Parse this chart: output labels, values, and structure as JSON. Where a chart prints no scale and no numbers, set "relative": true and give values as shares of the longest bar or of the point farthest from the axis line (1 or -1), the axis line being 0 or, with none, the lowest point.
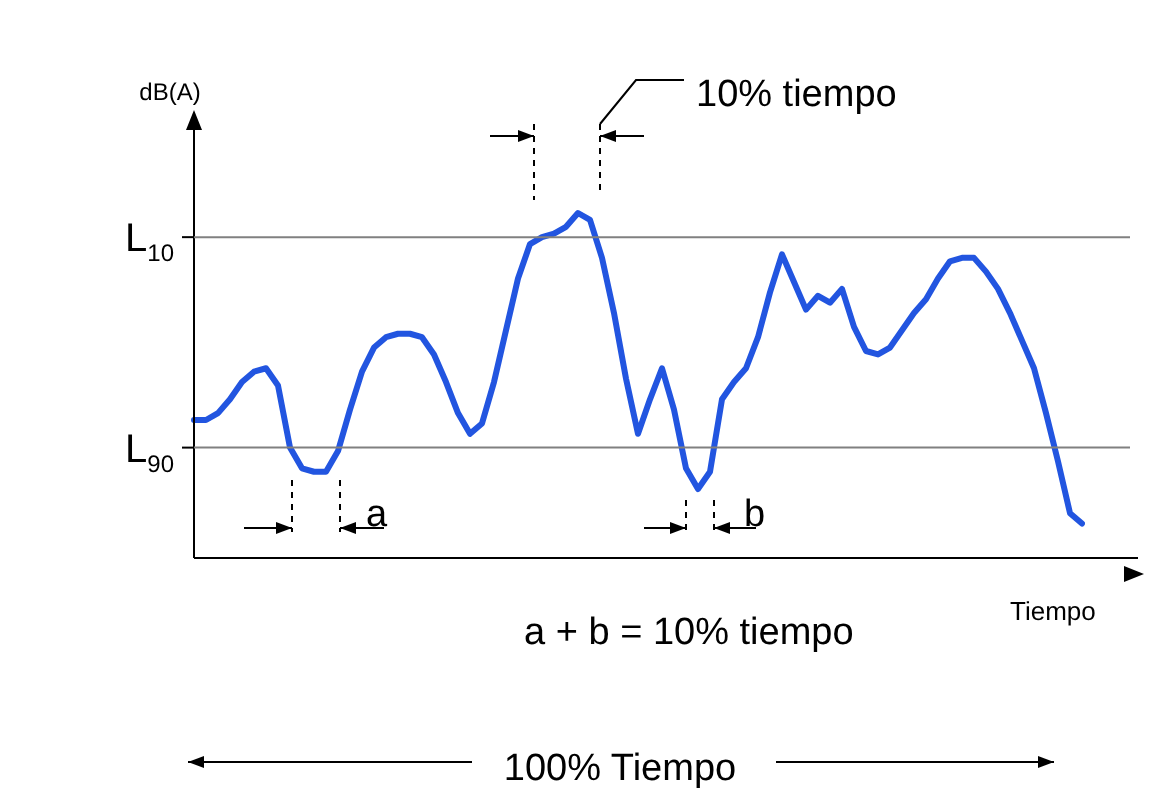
{
  "chart_data": {
    "type": "line",
    "relative": true,
    "ylabel": "dB(A)",
    "xlabel": "Tiempo",
    "categories": [
      null,
      null,
      null,
      null,
      null,
      null,
      null,
      null,
      null,
      null,
      null,
      null,
      null,
      null,
      null,
      null,
      null,
      null,
      null,
      null,
      null,
      null,
      null,
      null,
      null,
      null,
      null,
      null,
      null,
      null,
      null,
      null,
      null,
      null,
      null,
      null,
      null,
      null,
      null,
      null,
      null,
      null,
      null,
      null,
      null,
      null,
      null,
      null,
      null,
      null,
      null,
      null,
      null,
      null,
      null,
      null,
      null,
      null,
      null,
      null,
      null,
      null,
      null,
      null,
      null,
      null,
      null,
      null,
      null,
      null,
      null,
      null,
      null,
      null,
      null
    ],
    "series": [
      {
        "color": "#2255e0",
        "values": [
          0.4,
          0.4,
          0.42,
          0.46,
          0.51,
          0.54,
          0.55,
          0.5,
          0.32,
          0.26,
          0.25,
          0.25,
          0.31,
          0.43,
          0.54,
          0.61,
          0.64,
          0.65,
          0.65,
          0.64,
          0.59,
          0.51,
          0.42,
          0.36,
          0.39,
          0.51,
          0.66,
          0.81,
          0.91,
          0.93,
          0.94,
          0.96,
          1.0,
          0.98,
          0.87,
          0.71,
          0.52,
          0.36,
          0.46,
          0.55,
          0.43,
          0.26,
          0.2,
          0.25,
          0.46,
          0.51,
          0.55,
          0.64,
          0.77,
          0.88,
          0.8,
          0.72,
          0.76,
          0.74,
          0.78,
          0.67,
          0.6,
          0.59,
          0.61,
          0.66,
          0.71,
          0.75,
          0.81,
          0.86,
          0.87,
          0.87,
          0.83,
          0.78,
          0.71,
          0.63,
          0.55,
          0.42,
          0.28,
          0.13,
          0.1
        ]
      }
    ],
    "ref_lines": [
      {
        "axis": "y",
        "value": 0.93,
        "label": "L$_{10}$",
        "color": "#808080"
      },
      {
        "axis": "y",
        "value": 0.32,
        "label": "L$_{90}$",
        "color": "#808080"
      }
    ],
    "annotations": [
      "10% tiempo",
      "a",
      "b",
      "a + b = 10% tiempo",
      "100% Tiempo"
    ],
    "grid": false,
    "legend": false,
    "marker": "none",
    "line_style": "solid"
  }
}
